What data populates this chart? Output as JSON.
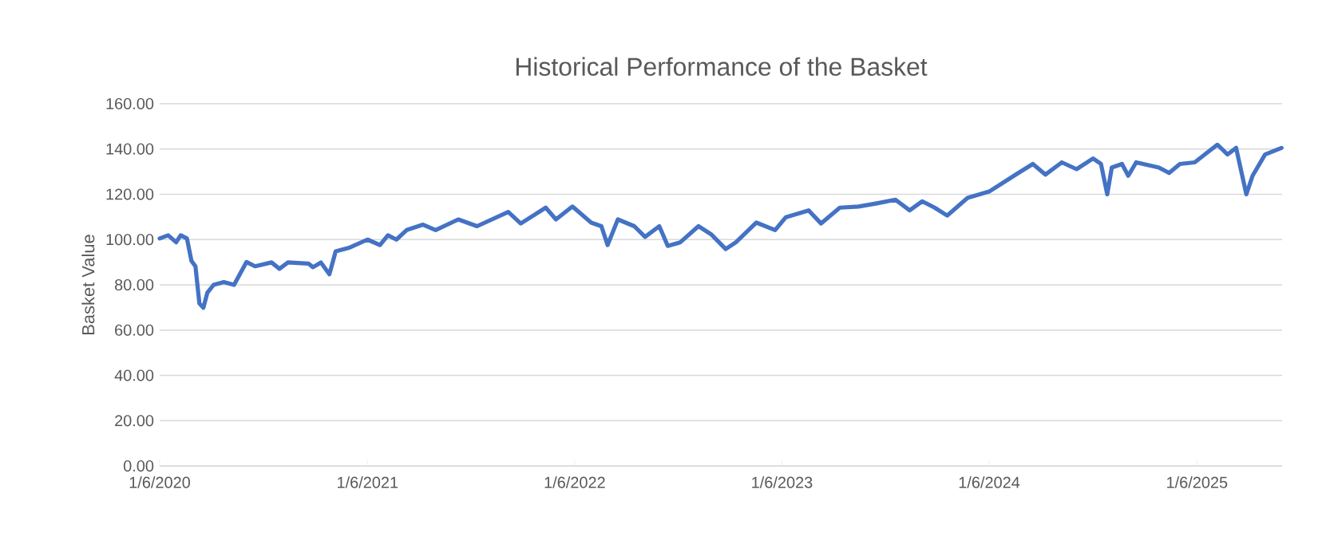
{
  "chart_data": {
    "type": "line",
    "title": "Historical Performance of the Basket",
    "ylabel": "Basket Value",
    "x": [
      "2020-01-06",
      "2020-01-21",
      "2020-02-04",
      "2020-02-12",
      "2020-02-23",
      "2020-03-02",
      "2020-03-09",
      "2020-03-16",
      "2020-03-23",
      "2020-03-30",
      "2020-04-10",
      "2020-04-28",
      "2020-05-16",
      "2020-06-07",
      "2020-06-22",
      "2020-07-21",
      "2020-08-04",
      "2020-08-19",
      "2020-09-24",
      "2020-10-02",
      "2020-10-16",
      "2020-10-31",
      "2020-11-11",
      "2020-12-06",
      "2021-01-06",
      "2021-01-28",
      "2021-02-11",
      "2021-02-26",
      "2021-03-16",
      "2021-04-14",
      "2021-05-06",
      "2021-06-15",
      "2021-07-18",
      "2021-09-11",
      "2021-10-03",
      "2021-11-16",
      "2021-12-04",
      "2022-01-02",
      "2022-02-04",
      "2022-02-22",
      "2022-03-05",
      "2022-03-23",
      "2022-04-21",
      "2022-05-10",
      "2022-06-04",
      "2022-06-19",
      "2022-07-11",
      "2022-08-12",
      "2022-09-03",
      "2022-09-29",
      "2022-10-17",
      "2022-11-22",
      "2022-12-25",
      "2023-01-13",
      "2023-02-22",
      "2023-03-16",
      "2023-04-18",
      "2023-05-21",
      "2023-06-22",
      "2023-07-25",
      "2023-08-19",
      "2023-09-10",
      "2023-10-02",
      "2023-10-24",
      "2023-11-29",
      "2024-01-06",
      "2024-02-22",
      "2024-03-23",
      "2024-04-14",
      "2024-05-13",
      "2024-06-08",
      "2024-07-07",
      "2024-07-21",
      "2024-08-01",
      "2024-08-09",
      "2024-08-27",
      "2024-09-07",
      "2024-09-21",
      "2024-10-31",
      "2024-11-18",
      "2024-12-07",
      "2025-01-02",
      "2025-01-20",
      "2025-02-11",
      "2025-03-01",
      "2025-03-16",
      "2025-04-03",
      "2025-04-14",
      "2025-05-06",
      "2025-06-04"
    ],
    "series": [
      {
        "color": "#4472c4",
        "values": [
          100.5,
          101.9,
          98.8,
          101.9,
          100.5,
          90.6,
          88.2,
          71.8,
          69.9,
          76.5,
          80.0,
          81.2,
          80.0,
          90.1,
          88.2,
          89.9,
          87.1,
          89.9,
          89.4,
          87.8,
          89.9,
          84.7,
          94.8,
          96.5,
          100.0,
          97.6,
          101.9,
          100.0,
          104.2,
          106.6,
          104.2,
          108.9,
          105.9,
          112.2,
          107.1,
          114.1,
          108.9,
          114.6,
          107.5,
          105.9,
          97.6,
          108.9,
          105.9,
          101.2,
          105.9,
          97.2,
          98.8,
          105.9,
          102.4,
          95.8,
          98.8,
          107.5,
          104.2,
          109.9,
          112.9,
          107.1,
          114.1,
          114.6,
          116.0,
          117.6,
          112.9,
          116.9,
          114.1,
          110.6,
          118.4,
          121.2,
          128.7,
          133.4,
          128.7,
          134.1,
          131.1,
          135.8,
          133.4,
          120.0,
          131.8,
          133.4,
          128.2,
          134.1,
          131.8,
          129.4,
          133.4,
          134.1,
          137.6,
          141.9,
          137.6,
          140.5,
          120.0,
          128.2,
          137.6,
          140.5
        ]
      }
    ],
    "xlim": [
      "2020-01-06",
      "2025-06-05"
    ],
    "xticks": [
      {
        "value": "2020-01-06",
        "label": "1/6/2020"
      },
      {
        "value": "2021-01-06",
        "label": "1/6/2021"
      },
      {
        "value": "2022-01-06",
        "label": "1/6/2022"
      },
      {
        "value": "2023-01-06",
        "label": "1/6/2023"
      },
      {
        "value": "2024-01-06",
        "label": "1/6/2024"
      },
      {
        "value": "2025-01-06",
        "label": "1/6/2025"
      }
    ],
    "ylim": [
      0,
      160
    ],
    "yticks": [
      {
        "value": 0,
        "label": "0.00"
      },
      {
        "value": 20,
        "label": "20.00"
      },
      {
        "value": 40,
        "label": "40.00"
      },
      {
        "value": 60,
        "label": "60.00"
      },
      {
        "value": 80,
        "label": "80.00"
      },
      {
        "value": 100,
        "label": "100.00"
      },
      {
        "value": 120,
        "label": "120.00"
      },
      {
        "value": 140,
        "label": "140.00"
      },
      {
        "value": 160,
        "label": "160.00"
      }
    ],
    "grid": "y",
    "marker": "none",
    "line_style": "solid"
  }
}
